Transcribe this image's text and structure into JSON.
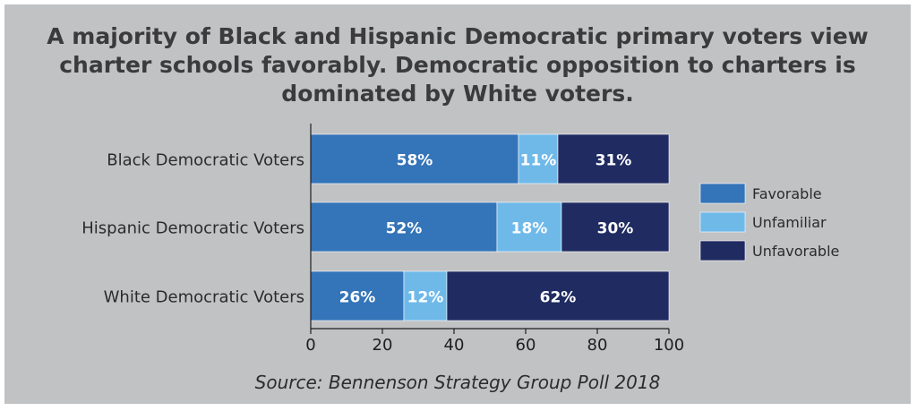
{
  "title_lines": [
    "A majority of Black and Hispanic Democratic primary voters view",
    "charter schools favorably. Democratic opposition to charters is",
    "dominated by White voters."
  ],
  "source": "Source: Bennenson Strategy Group Poll 2018",
  "colors": {
    "Favorable": "#3474b8",
    "Unfamiliar": "#6fb9e9",
    "Unfavorable": "#1f2b61"
  },
  "chart_data": {
    "type": "bar",
    "orientation": "horizontal",
    "stacked": true,
    "title": "A majority of Black and Hispanic Democratic primary voters view charter schools favorably. Democratic opposition to charters is dominated by White voters.",
    "categories": [
      "Black Democratic Voters",
      "Hispanic Democratic Voters",
      "White Democratic Voters"
    ],
    "series": [
      {
        "name": "Favorable",
        "values": [
          58,
          52,
          26
        ]
      },
      {
        "name": "Unfamiliar",
        "values": [
          11,
          18,
          12
        ]
      },
      {
        "name": "Unfavorable",
        "values": [
          31,
          30,
          62
        ]
      }
    ],
    "data_labels": [
      [
        "58%",
        "11%",
        "31%"
      ],
      [
        "52%",
        "18%",
        "30%"
      ],
      [
        "26%",
        "12%",
        "62%"
      ]
    ],
    "xlim": [
      0,
      100
    ],
    "xticks": [
      "0",
      "20",
      "40",
      "60",
      "80",
      "100"
    ],
    "grid": false,
    "legend_position": "right"
  }
}
